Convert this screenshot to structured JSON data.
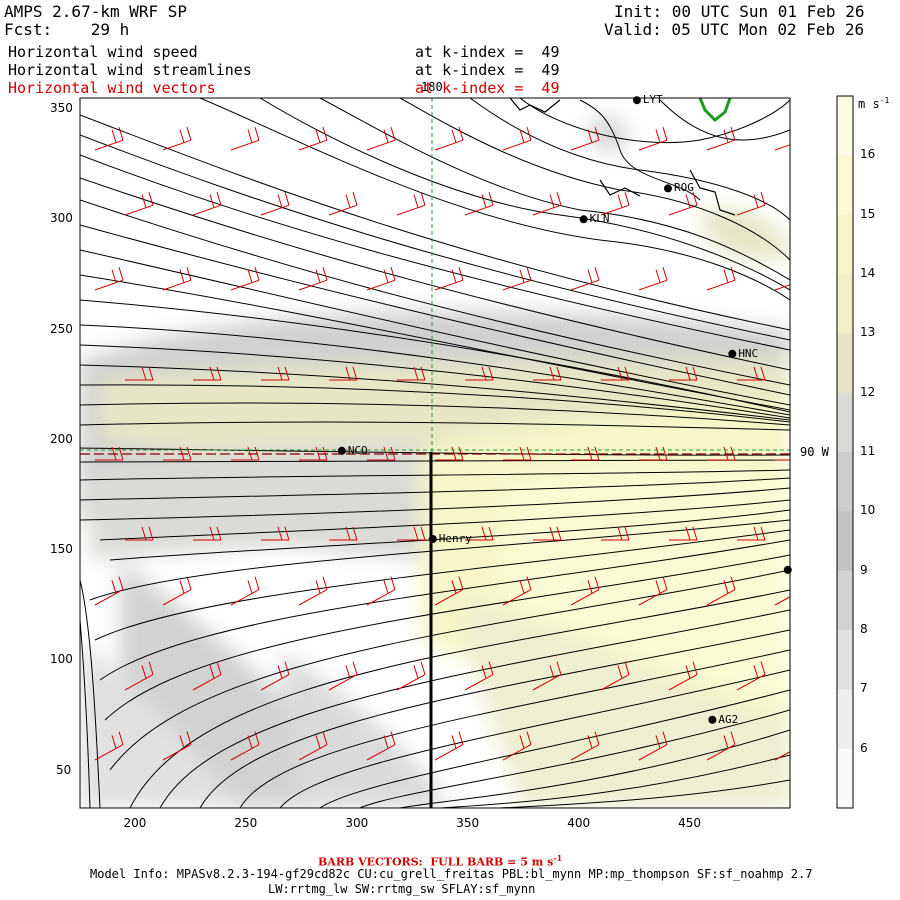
{
  "header": {
    "model": "AMPS 2.67-km WRF SP",
    "forecast": "Fcst:    29 h",
    "init": "Init: 00 UTC Sun 01 Feb 26",
    "valid": "Valid: 05 UTC Mon 02 Feb 26"
  },
  "fields": [
    {
      "name": "Horizontal wind speed",
      "level": "at k-index =  49",
      "color": "#000000"
    },
    {
      "name": "Horizontal wind streamlines",
      "level": "at k-index =  49",
      "color": "#000000"
    },
    {
      "name": "Horizontal wind vectors",
      "level": "at k-index =  49",
      "color": "#d40000"
    }
  ],
  "map": {
    "x_ticks": [
      "200",
      "250",
      "300",
      "350",
      "400",
      "450"
    ],
    "y_ticks": [
      "350",
      "300",
      "250",
      "200",
      "150",
      "100",
      "50"
    ],
    "x_range": [
      175,
      495
    ],
    "y_range": [
      33,
      355
    ],
    "meridian_label": "180",
    "parallel_label": "90 W",
    "stations": [
      {
        "name": "LYT",
        "x": 426,
        "y": 354
      },
      {
        "name": "ROG",
        "x": 440,
        "y": 314
      },
      {
        "name": "KLN",
        "x": 402,
        "y": 300
      },
      {
        "name": "HNC",
        "x": 469,
        "y": 239
      },
      {
        "name": "NCO",
        "x": 293,
        "y": 195
      },
      {
        "name": "Henry",
        "x": 334,
        "y": 155
      },
      {
        "name": "",
        "x": 494,
        "y": 141
      },
      {
        "name": "AG2",
        "x": 460,
        "y": 73
      }
    ],
    "cross_section_x": 333
  },
  "colorbar": {
    "units": "m s",
    "units_exp": "-1",
    "labels": [
      "16",
      "15",
      "14",
      "13",
      "12",
      "11",
      "10",
      "9",
      "8",
      "7",
      "6"
    ],
    "colors": [
      "#fcfce8",
      "#fafad4",
      "#f6f6c8",
      "#f0f0c6",
      "#e6e6c6",
      "#dadad6",
      "#cdcdcd",
      "#c2c2c2",
      "#d2d2d2",
      "#e1e1e1",
      "#eeeeee",
      "#fafafa"
    ]
  },
  "footer": {
    "barb": "BARB VECTORS:  FULL BARB = 5 m s",
    "barb_exp": "-1",
    "model_info": "Model Info: MPASv8.2.3-194-gf29cd82c CU:cu_grell_freitas PBL:bl_mynn MP:mp_thompson SF:sf_noahmp 2.7",
    "model_info2": "LW:rrtmg_lw SW:rrtmg_sw SFLAY:sf_mynn"
  }
}
